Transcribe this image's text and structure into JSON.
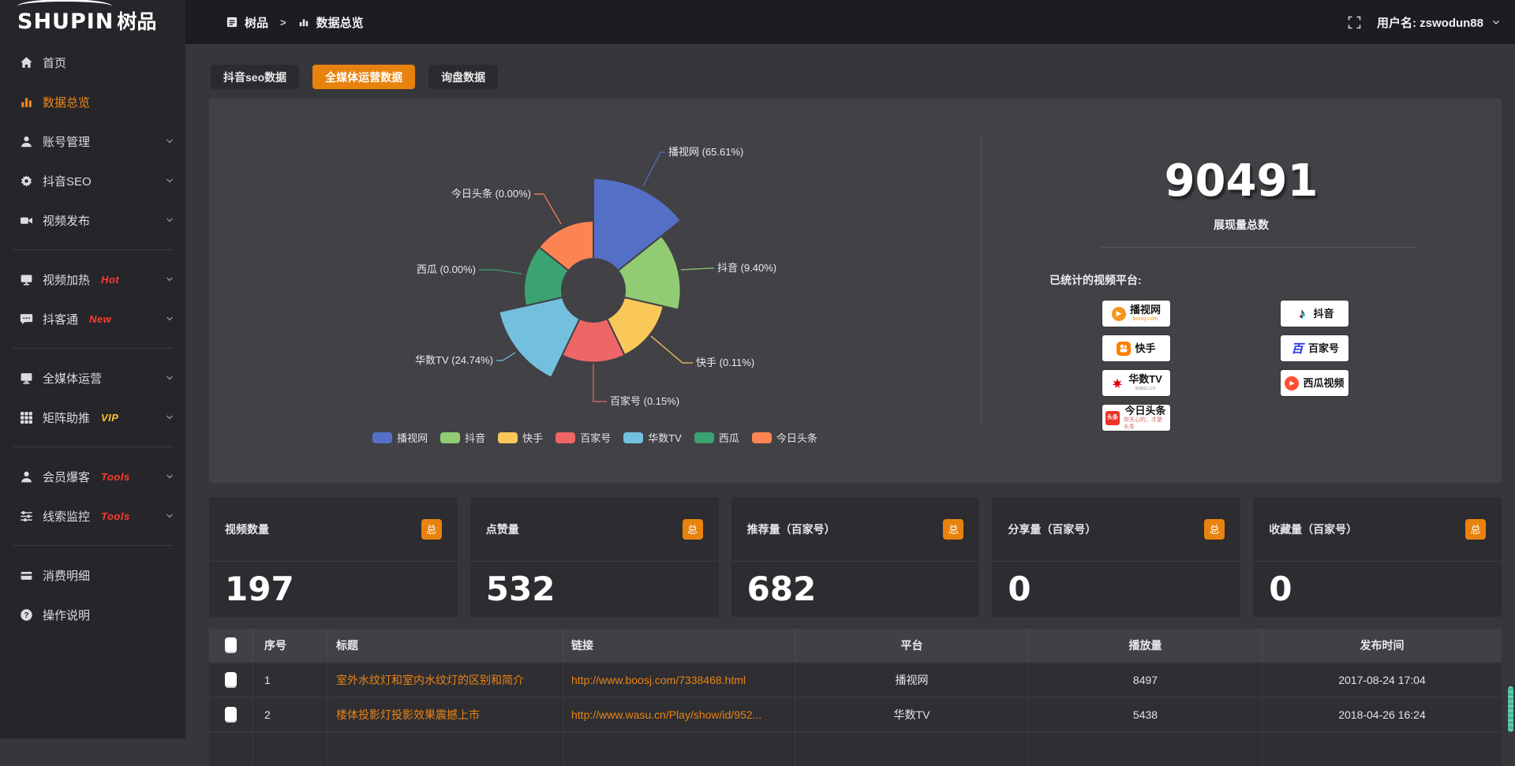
{
  "header": {
    "breadcrumb_app": "树品",
    "breadcrumb_sep": ">",
    "breadcrumb_page": "数据总览",
    "username": "用户名: zswodun88"
  },
  "sidebar": {
    "logo_en": "SHUPIN",
    "logo_cn": "树品",
    "items": [
      {
        "id": "home",
        "label": "首页",
        "icon": "home-icon",
        "chevron": false,
        "active": false,
        "badge": "",
        "badge_color": ""
      },
      {
        "id": "data-overview",
        "label": "数据总览",
        "icon": "bar-chart-icon",
        "chevron": false,
        "active": true,
        "badge": "",
        "badge_color": ""
      },
      {
        "id": "account-manage",
        "label": "账号管理",
        "icon": "user-icon",
        "chevron": true,
        "active": false,
        "badge": "",
        "badge_color": ""
      },
      {
        "id": "douyin-seo",
        "label": "抖音SEO",
        "icon": "gear-icon",
        "chevron": true,
        "active": false,
        "badge": "",
        "badge_color": ""
      },
      {
        "id": "video-publish",
        "label": "视频发布",
        "icon": "video-icon",
        "chevron": true,
        "active": false,
        "badge": "",
        "badge_color": "",
        "divider_after": true
      },
      {
        "id": "video-heat",
        "label": "视频加热",
        "icon": "screen-icon",
        "chevron": true,
        "active": false,
        "badge": "Hot",
        "badge_color": "#ff3b30"
      },
      {
        "id": "douketong",
        "label": "抖客通",
        "icon": "chat-icon",
        "chevron": true,
        "active": false,
        "badge": "New",
        "badge_color": "#ff3b30",
        "divider_after": true
      },
      {
        "id": "media-operation",
        "label": "全媒体运营",
        "icon": "monitor-icon",
        "chevron": true,
        "active": false,
        "badge": "",
        "badge_color": ""
      },
      {
        "id": "matrix-boost",
        "label": "矩阵助推",
        "icon": "grid-icon",
        "chevron": true,
        "active": false,
        "badge": "VIP",
        "badge_color": "#fdc22d",
        "divider_after": true
      },
      {
        "id": "member-burst",
        "label": "会员爆客",
        "icon": "member-icon",
        "chevron": true,
        "active": false,
        "badge": "Tools",
        "badge_color": "#ff3b30"
      },
      {
        "id": "clue-monitor",
        "label": "线索监控",
        "icon": "sliders-icon",
        "chevron": true,
        "active": false,
        "badge": "Tools",
        "badge_color": "#ff3b30",
        "divider_after": true
      },
      {
        "id": "consume-detail",
        "label": "消费明细",
        "icon": "wallet-icon",
        "chevron": false,
        "active": false,
        "badge": "",
        "badge_color": ""
      },
      {
        "id": "help",
        "label": "操作说明",
        "icon": "help-icon",
        "chevron": false,
        "active": false,
        "badge": "",
        "badge_color": ""
      }
    ]
  },
  "tabs": [
    {
      "label": "抖音seo数据",
      "active": false
    },
    {
      "label": "全媒体运营数据",
      "active": true
    },
    {
      "label": "询盘数据",
      "active": false
    }
  ],
  "chart_data": {
    "type": "pie",
    "variant": "nightingale-rose",
    "unit": "%",
    "series": [
      {
        "name": "播视网",
        "value": 65.61,
        "label": "播视网 (65.61%)",
        "color": "#5470c6"
      },
      {
        "name": "抖音",
        "value": 9.4,
        "label": "抖音 (9.40%)",
        "color": "#91cc75"
      },
      {
        "name": "快手",
        "value": 0.11,
        "label": "快手 (0.11%)",
        "color": "#fac858"
      },
      {
        "name": "百家号",
        "value": 0.15,
        "label": "百家号 (0.15%)",
        "color": "#ee6666"
      },
      {
        "name": "华数TV",
        "value": 24.74,
        "label": "华数TV (24.74%)",
        "color": "#73c0de"
      },
      {
        "name": "西瓜",
        "value": 0.0,
        "label": "西瓜 (0.00%)",
        "color": "#3ba272"
      },
      {
        "name": "今日头条",
        "value": 0.0,
        "label": "今日头条 (0.00%)",
        "color": "#fc8452"
      }
    ],
    "legend": [
      "播视网",
      "抖音",
      "快手",
      "百家号",
      "华数TV",
      "西瓜",
      "今日头条"
    ],
    "legend_position": "bottom"
  },
  "summary": {
    "total_value": "90491",
    "total_caption": "展现量总数",
    "platforms_caption": "已统计的视频平台:",
    "platforms": [
      {
        "name": "播视网",
        "sub": "boosj.com",
        "logo": "boosj-logo",
        "logo_text": ""
      },
      {
        "name": "快手",
        "sub": "",
        "logo": "kuaishou-logo",
        "logo_text": ""
      },
      {
        "name": "华数TV",
        "sub": "wasu.cn",
        "logo": "wasu-logo",
        "logo_text": ""
      },
      {
        "name": "今日头条",
        "sub": "你关心的，才是头条",
        "logo": "toutiao-logo",
        "logo_text": "头条"
      },
      {
        "name": "抖音",
        "sub": "",
        "logo": "douyin-logo",
        "logo_text": ""
      },
      {
        "name": "百家号",
        "sub": "",
        "logo": "baijiahao-logo",
        "logo_text": "百"
      },
      {
        "name": "西瓜视频",
        "sub": "",
        "logo": "xigua-logo",
        "logo_text": ""
      }
    ]
  },
  "stat_cards": [
    {
      "title": "视频数量",
      "badge": "总",
      "value": "197"
    },
    {
      "title": "点赞量",
      "badge": "总",
      "value": "532"
    },
    {
      "title": "推荐量（百家号）",
      "badge": "总",
      "value": "682"
    },
    {
      "title": "分享量（百家号）",
      "badge": "总",
      "value": "0"
    },
    {
      "title": "收藏量（百家号）",
      "badge": "总",
      "value": "0"
    }
  ],
  "table": {
    "headers": [
      "",
      "序号",
      "标题",
      "链接",
      "平台",
      "播放量",
      "发布时间"
    ],
    "rows": [
      {
        "no": "1",
        "title": "室外水纹灯和室内水纹灯的区别和简介",
        "link": "http://www.boosj.com/7338468.html",
        "platform": "播视网",
        "plays": "8497",
        "time": "2017-08-24 17:04"
      },
      {
        "no": "2",
        "title": "楼体投影灯投影效果震撼上市",
        "link": "http://www.wasu.cn/Play/show/id/952...",
        "platform": "华数TV",
        "plays": "5438",
        "time": "2018-04-26 16:24"
      }
    ]
  },
  "colors": {
    "accent": "#e8820e",
    "link": "#ea8412",
    "panel": "#414146"
  }
}
